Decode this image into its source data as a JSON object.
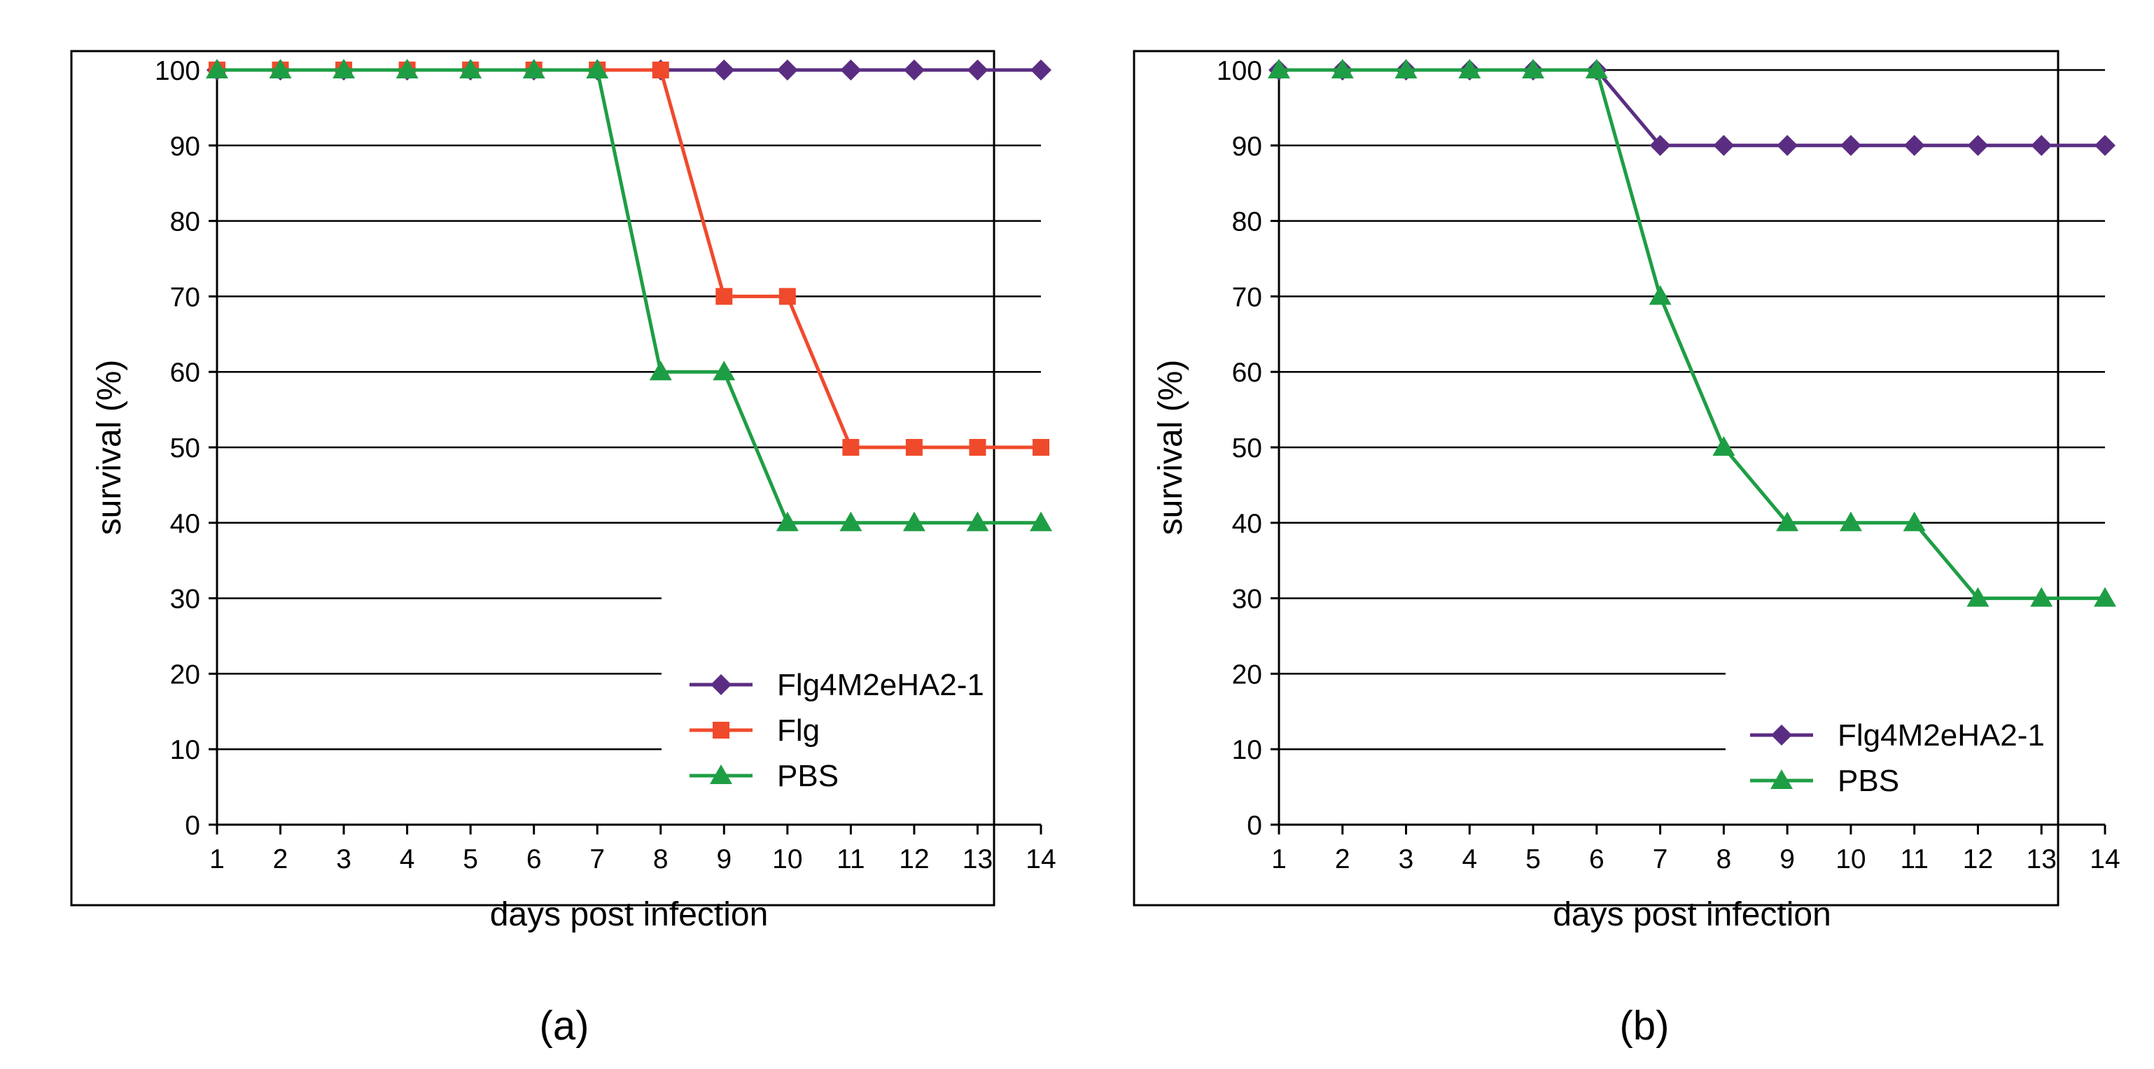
{
  "chart_data": [
    {
      "type": "line",
      "panel_label": "(a)",
      "xlabel": "days post infection",
      "ylabel": "survival (%)",
      "x": [
        1,
        2,
        3,
        4,
        5,
        6,
        7,
        8,
        9,
        10,
        11,
        12,
        13,
        14
      ],
      "xlim": [
        1,
        14
      ],
      "ylim": [
        0,
        100
      ],
      "yticks": [
        0,
        10,
        20,
        30,
        40,
        50,
        60,
        70,
        80,
        90,
        100
      ],
      "grid": true,
      "legend_position": "bottom-right",
      "series": [
        {
          "name": "Flg4M2eHA2-1",
          "color": "#5a2d82",
          "marker": "diamond",
          "values": [
            100,
            100,
            100,
            100,
            100,
            100,
            100,
            100,
            100,
            100,
            100,
            100,
            100,
            100
          ]
        },
        {
          "name": "Flg",
          "color": "#f04a2c",
          "marker": "square",
          "values": [
            100,
            100,
            100,
            100,
            100,
            100,
            100,
            100,
            70,
            70,
            50,
            50,
            50,
            50
          ]
        },
        {
          "name": "PBS",
          "color": "#1e9e44",
          "marker": "triangle",
          "values": [
            100,
            100,
            100,
            100,
            100,
            100,
            100,
            60,
            60,
            40,
            40,
            40,
            40,
            40
          ]
        }
      ]
    },
    {
      "type": "line",
      "panel_label": "(b)",
      "xlabel": "days post infection",
      "ylabel": "survival (%)",
      "x": [
        1,
        2,
        3,
        4,
        5,
        6,
        7,
        8,
        9,
        10,
        11,
        12,
        13,
        14
      ],
      "xlim": [
        1,
        14
      ],
      "ylim": [
        0,
        100
      ],
      "yticks": [
        0,
        10,
        20,
        30,
        40,
        50,
        60,
        70,
        80,
        90,
        100
      ],
      "grid": true,
      "legend_position": "bottom-right",
      "series": [
        {
          "name": "Flg4M2eHA2-1",
          "color": "#5a2d82",
          "marker": "diamond",
          "values": [
            100,
            100,
            100,
            100,
            100,
            100,
            90,
            90,
            90,
            90,
            90,
            90,
            90,
            90
          ]
        },
        {
          "name": "PBS",
          "color": "#1e9e44",
          "marker": "triangle",
          "values": [
            100,
            100,
            100,
            100,
            100,
            100,
            70,
            50,
            40,
            40,
            40,
            30,
            30,
            30
          ]
        }
      ]
    }
  ]
}
